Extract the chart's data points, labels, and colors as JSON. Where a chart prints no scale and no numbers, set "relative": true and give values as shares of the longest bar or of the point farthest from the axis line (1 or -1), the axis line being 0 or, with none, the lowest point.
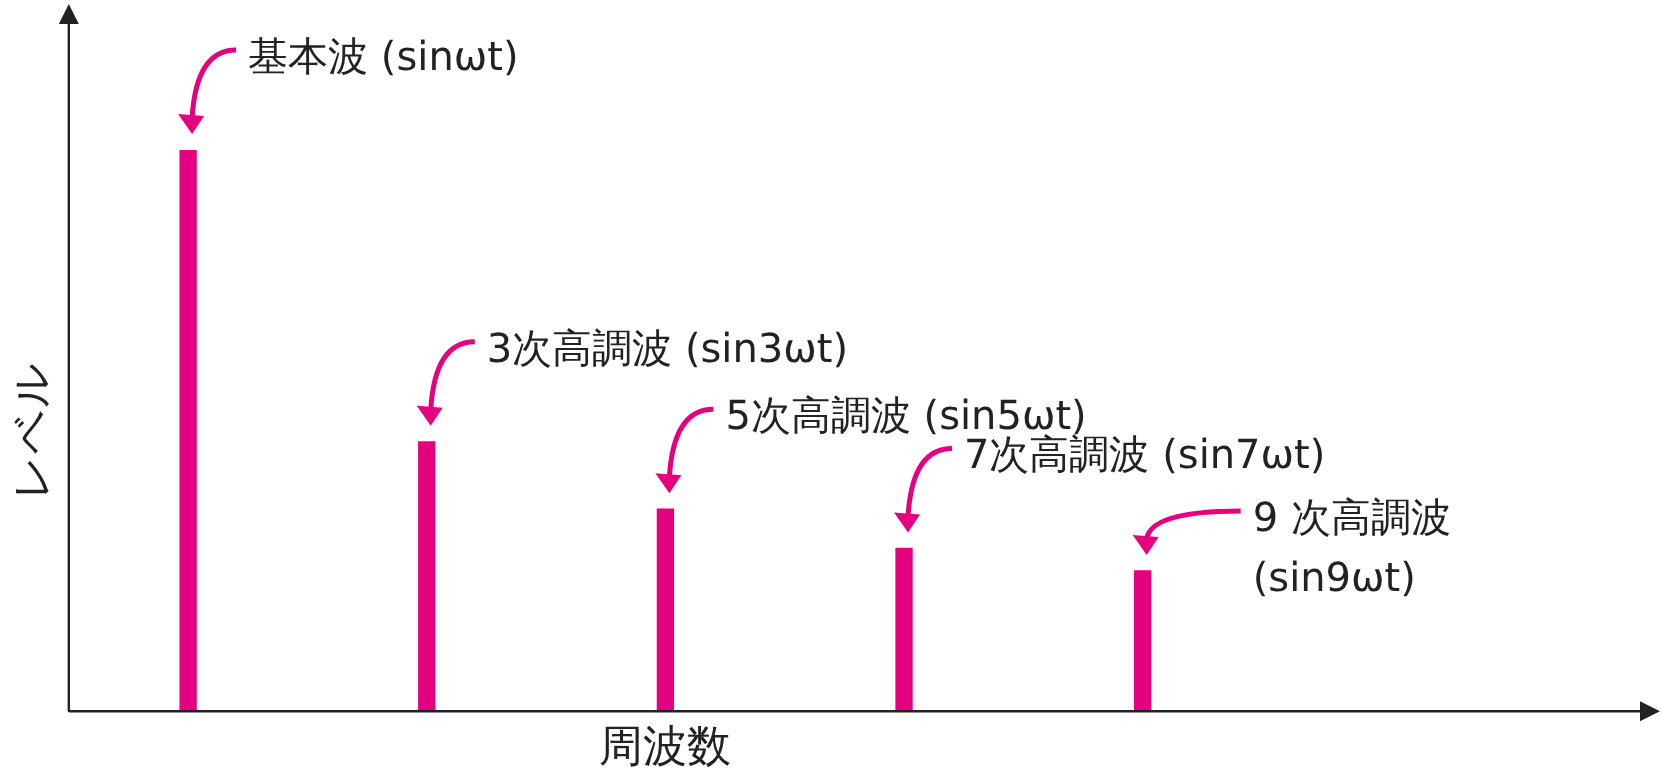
{
  "chart_data": {
    "type": "bar",
    "categories": [
      null,
      null,
      null,
      null,
      null
    ],
    "values": [
      1,
      0.48,
      0.36,
      0.29,
      0.25
    ],
    "color": "#e4007f",
    "relative": true,
    "xlabel": "周波数",
    "ylabel": "レベル",
    "grid": false,
    "legend": false,
    "annotations": [
      "基本波 (sinωt)",
      "3次高調波 (sin3ωt)",
      "5次高調波 (sin5ωt)",
      "7次高調波 (sin7ωt)",
      "9 次高調波\n(sin9ωt)"
    ]
  }
}
